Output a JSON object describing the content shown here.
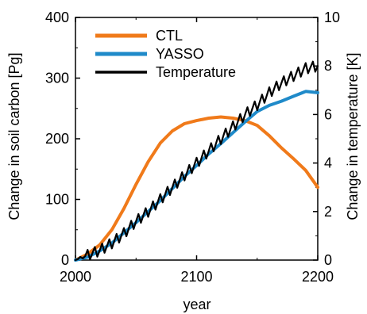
{
  "chart_data": {
    "type": "line",
    "xlabel": "year",
    "ylabel_left": "Change in soil carbon [Pg]",
    "ylabel_right": "Change in temperature [K]",
    "xlim": [
      2000,
      2200
    ],
    "ylim_left": [
      0,
      400
    ],
    "ylim_right": [
      0,
      10
    ],
    "xticks": [
      "2000",
      "2100",
      "2200"
    ],
    "yticks_left": [
      "0",
      "100",
      "200",
      "300",
      "400"
    ],
    "yticks_right": [
      "0",
      "2",
      "4",
      "6",
      "8",
      "10"
    ],
    "legend_position": "top-left",
    "grid": false,
    "series": [
      {
        "name": "CTL",
        "axis": "left",
        "color": "#f07a1a",
        "x": [
          2000,
          2010,
          2020,
          2030,
          2040,
          2050,
          2060,
          2070,
          2080,
          2090,
          2100,
          2110,
          2120,
          2130,
          2140,
          2150,
          2160,
          2170,
          2180,
          2190,
          2200
        ],
        "y": [
          0,
          10,
          25,
          50,
          85,
          125,
          162,
          193,
          213,
          225,
          230,
          234,
          236,
          234,
          230,
          222,
          205,
          185,
          167,
          148,
          120
        ]
      },
      {
        "name": "YASSO",
        "axis": "left",
        "color": "#1f8ac9",
        "x": [
          2000,
          2010,
          2020,
          2030,
          2040,
          2050,
          2060,
          2070,
          2080,
          2090,
          2100,
          2110,
          2120,
          2130,
          2140,
          2150,
          2160,
          2170,
          2180,
          2190,
          2200
        ],
        "y": [
          0,
          5,
          15,
          28,
          45,
          62,
          80,
          98,
          118,
          138,
          156,
          175,
          192,
          210,
          228,
          245,
          255,
          262,
          270,
          278,
          276
        ]
      },
      {
        "name": "Temperature",
        "axis": "right",
        "color": "#000000",
        "x": [
          2000,
          2010,
          2020,
          2030,
          2040,
          2050,
          2060,
          2070,
          2080,
          2090,
          2100,
          2110,
          2120,
          2130,
          2140,
          2150,
          2160,
          2170,
          2180,
          2190,
          2200
        ],
        "y": [
          0,
          0.2,
          0.4,
          0.7,
          1.1,
          1.6,
          2.0,
          2.5,
          3.0,
          3.5,
          4.0,
          4.5,
          5.0,
          5.5,
          6.0,
          6.4,
          6.9,
          7.3,
          7.6,
          7.9,
          8.0
        ]
      }
    ]
  }
}
